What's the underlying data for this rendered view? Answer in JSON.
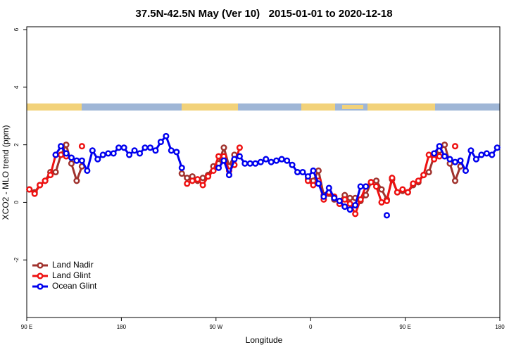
{
  "chart_data": {
    "type": "line",
    "title": "37.5N-42.5N May (Ver 10)   2015-01-01 to 2020-12-18",
    "xlabel": "Longitude",
    "ylabel": "XCO2 - MLO trend (ppm)",
    "xlim": [
      90,
      540
    ],
    "ylim": [
      -4,
      6.1
    ],
    "xticks": [
      {
        "value": 90,
        "label": "90 E"
      },
      {
        "value": 180,
        "label": "180"
      },
      {
        "value": 270,
        "label": "90 W"
      },
      {
        "value": 360,
        "label": "0"
      },
      {
        "value": 450,
        "label": "90 E"
      },
      {
        "value": 540,
        "label": "180"
      }
    ],
    "yticks": [
      -2,
      0,
      2,
      4,
      6
    ],
    "legend": "bottom left",
    "series": [
      {
        "name": "Land Nadir",
        "color": "#a0322d",
        "x": [
          92.5,
          97.5,
          102.5,
          107.5,
          112.5,
          117.5,
          122.5,
          127.5,
          132.5,
          137.5,
          142.5,
          190,
          237.5,
          242.5,
          247.5,
          252.5,
          257.5,
          262.5,
          267.5,
          272.5,
          277.5,
          282.5,
          287.5,
          320,
          357.5,
          362.5,
          367.5,
          372.5,
          377.5,
          382.5,
          387.5,
          392.5,
          397.5,
          402.5,
          407.5,
          412.5,
          417.5,
          422.5,
          427.5,
          432.5,
          437.5,
          442.5,
          447.5,
          452.5,
          457.5,
          462.5,
          467.5,
          472.5,
          477.5,
          482.5,
          487.5,
          492.5,
          497.5,
          502.5
        ],
        "values": [
          0.45,
          0.35,
          0.6,
          0.75,
          1.05,
          1.05,
          1.65,
          2.0,
          1.35,
          0.75,
          1.25,
          null,
          1.0,
          0.85,
          0.9,
          0.75,
          0.85,
          0.95,
          1.25,
          1.35,
          1.9,
          1.25,
          1.65,
          null,
          0.8,
          0.75,
          1.1,
          0.25,
          0.3,
          0.1,
          0.05,
          0.25,
          0.15,
          0.15,
          0.05,
          0.25,
          0.7,
          0.75,
          0.45,
          0.1,
          0.8,
          0.35,
          0.4,
          0.35,
          0.6,
          0.7,
          0.95,
          1.05,
          1.6,
          1.8,
          2.0,
          1.35,
          0.75,
          1.25
        ]
      },
      {
        "name": "Land Glint",
        "color": "#ee1111",
        "x": [
          92.5,
          97.5,
          102.5,
          107.5,
          112.5,
          117.5,
          122.5,
          127.5,
          135,
          142.5,
          190,
          242.5,
          247.5,
          252.5,
          257.5,
          262.5,
          267.5,
          272.5,
          277.5,
          282.5,
          287.5,
          292.5,
          320,
          357.5,
          362.5,
          367.5,
          372.5,
          377.5,
          382.5,
          387.5,
          392.5,
          397.5,
          402.5,
          407.5,
          412.5,
          417.5,
          422.5,
          427.5,
          432.5,
          437.5,
          442.5,
          447.5,
          452.5,
          457.5,
          462.5,
          467.5,
          472.5,
          477.5,
          482.5,
          490,
          497.5
        ],
        "values": [
          0.45,
          0.3,
          0.6,
          0.75,
          0.95,
          1.65,
          1.65,
          1.6,
          null,
          1.95,
          null,
          0.65,
          0.75,
          0.8,
          0.6,
          0.9,
          1.1,
          1.6,
          1.6,
          1.1,
          1.3,
          1.9,
          null,
          0.75,
          0.6,
          0.75,
          0.1,
          0.35,
          0.2,
          -0.05,
          0.1,
          -0.05,
          -0.4,
          0.1,
          0.55,
          0.7,
          0.55,
          0.0,
          0.05,
          0.85,
          0.35,
          0.45,
          0.35,
          0.65,
          0.75,
          0.95,
          1.65,
          1.5,
          1.6,
          null,
          1.95
        ]
      },
      {
        "name": "Ocean Glint",
        "color": "#0000ee",
        "x": [
          117.5,
          122.5,
          127.5,
          132.5,
          137.5,
          142.5,
          147.5,
          152.5,
          157.5,
          162.5,
          167.5,
          172.5,
          177.5,
          182.5,
          187.5,
          192.5,
          197.5,
          202.5,
          207.5,
          212.5,
          217.5,
          222.5,
          227.5,
          232.5,
          237.5,
          255,
          272.5,
          277.5,
          282.5,
          287.5,
          292.5,
          297.5,
          302.5,
          307.5,
          312.5,
          317.5,
          322.5,
          327.5,
          332.5,
          337.5,
          342.5,
          347.5,
          352.5,
          357.5,
          362.5,
          367.5,
          372.5,
          377.5,
          382.5,
          387.5,
          392.5,
          397.5,
          402.5,
          407.5,
          412.5,
          420,
          432.5,
          455,
          477.5,
          482.5,
          487.5,
          492.5,
          497.5,
          502.5,
          507.5,
          512.5,
          517.5,
          522.5,
          527.5,
          532.5,
          537.5
        ],
        "values": [
          1.65,
          1.95,
          1.7,
          1.55,
          1.45,
          1.45,
          1.1,
          1.8,
          1.5,
          1.65,
          1.7,
          1.7,
          1.9,
          1.9,
          1.65,
          1.8,
          1.7,
          1.9,
          1.9,
          1.8,
          2.1,
          2.3,
          1.8,
          1.75,
          1.2,
          null,
          1.2,
          1.45,
          0.95,
          1.5,
          1.6,
          1.35,
          1.35,
          1.35,
          1.4,
          1.5,
          1.4,
          1.45,
          1.5,
          1.45,
          1.3,
          1.05,
          1.05,
          0.9,
          1.1,
          0.65,
          0.2,
          0.5,
          0.15,
          0.05,
          -0.15,
          -0.25,
          -0.1,
          0.55,
          0.55,
          null,
          -0.45,
          null,
          1.7,
          1.95,
          1.6,
          1.5,
          1.4,
          1.45,
          1.1,
          1.8,
          1.5,
          1.65,
          1.7,
          1.65,
          1.9
        ]
      }
    ]
  }
}
